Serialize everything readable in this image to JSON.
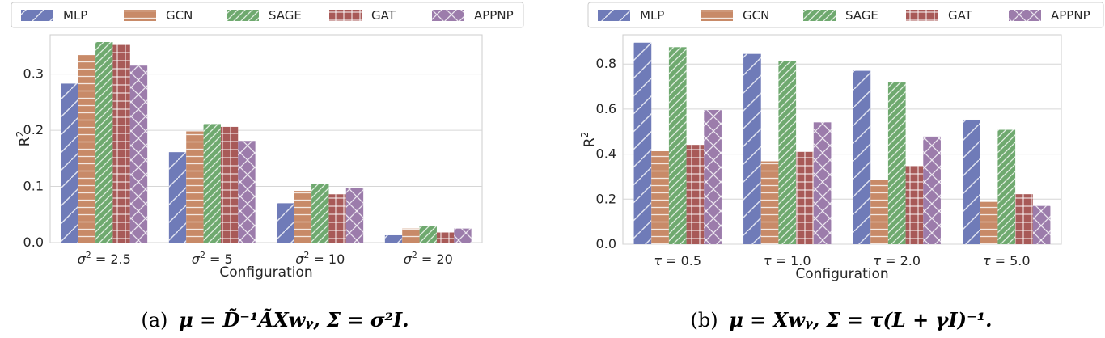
{
  "colors": {
    "MLP": "#6f7bb8",
    "GCN": "#c88a68",
    "SAGE": "#6fa96f",
    "GAT": "#a85a58",
    "APPNP": "#9c7cab"
  },
  "chart_data": [
    {
      "type": "bar",
      "categories": [
        "σ² = 2.5",
        "σ² = 5",
        "σ² = 10",
        "σ² = 20"
      ],
      "series": [
        {
          "name": "MLP",
          "values": [
            0.283,
            0.161,
            0.07,
            0.013
          ]
        },
        {
          "name": "GCN",
          "values": [
            0.334,
            0.198,
            0.092,
            0.025
          ]
        },
        {
          "name": "SAGE",
          "values": [
            0.357,
            0.211,
            0.104,
            0.029
          ]
        },
        {
          "name": "GAT",
          "values": [
            0.352,
            0.206,
            0.086,
            0.018
          ]
        },
        {
          "name": "APPNP",
          "values": [
            0.315,
            0.181,
            0.097,
            0.025
          ]
        }
      ],
      "xlabel": "Configuration",
      "ylabel": "R2",
      "ylim": [
        0,
        0.37
      ],
      "yticks": [
        "0.0",
        "0.1",
        "0.2",
        "0.3"
      ],
      "grid": true,
      "legend": "top",
      "caption_label": "(a)",
      "caption_math": "μ = D̃⁻¹ÃXwᵧ, Σ = σ²I."
    },
    {
      "type": "bar",
      "categories": [
        "τ = 0.5",
        "τ = 1.0",
        "τ = 2.0",
        "τ = 5.0"
      ],
      "series": [
        {
          "name": "MLP",
          "values": [
            0.895,
            0.845,
            0.77,
            0.553
          ]
        },
        {
          "name": "GCN",
          "values": [
            0.413,
            0.368,
            0.285,
            0.188
          ]
        },
        {
          "name": "SAGE",
          "values": [
            0.875,
            0.815,
            0.718,
            0.508
          ]
        },
        {
          "name": "GAT",
          "values": [
            0.441,
            0.41,
            0.348,
            0.222
          ]
        },
        {
          "name": "APPNP",
          "values": [
            0.596,
            0.541,
            0.478,
            0.17
          ]
        }
      ],
      "xlabel": "Configuration",
      "ylabel": "R2",
      "ylim": [
        0,
        0.93
      ],
      "yticks": [
        "0.0",
        "0.2",
        "0.4",
        "0.6",
        "0.8"
      ],
      "grid": true,
      "legend": "top",
      "caption_label": "(b)",
      "caption_math": "μ = Xwᵧ, Σ = τ(L + γI)⁻¹."
    }
  ]
}
